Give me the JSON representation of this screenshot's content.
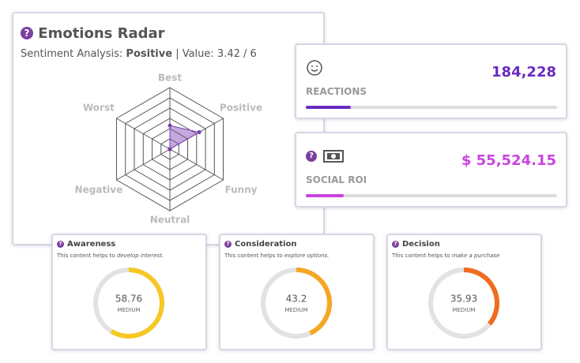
{
  "radar": {
    "title": "Emotions Radar",
    "subtitle_label": "Sentiment Analysis:",
    "sentiment": "Positive",
    "value_text": "| Value: 3.42 / 6",
    "axes": [
      "Best",
      "Positive",
      "Funny",
      "Neutral",
      "Negative",
      "Worst"
    ],
    "values": [
      2.3,
      3.3,
      0,
      0,
      0,
      0
    ],
    "scale_max": 6,
    "color": "#7a3fb0"
  },
  "stats": [
    {
      "label": "REACTIONS",
      "value": "184,228",
      "progress": 0.18,
      "color": "#6a2bc4"
    },
    {
      "label": "SOCIAL ROI",
      "value": "$ 55,524.15",
      "progress": 0.15,
      "color": "#c944e0"
    }
  ],
  "gauges": {
    "scale": [
      0,
      100
    ],
    "items": [
      {
        "title": "Awareness",
        "description": "This content helps to",
        "emphasis": "develop interest.",
        "value": 58.76,
        "level": "MEDIUM",
        "color": "#f7c825"
      },
      {
        "title": "Consideration",
        "description": "This content helps to",
        "emphasis": "explore options.",
        "value": 43.2,
        "level": "MEDIUM",
        "color": "#f5a623"
      },
      {
        "title": "Decision",
        "description": "This content helps to",
        "emphasis": "make a purchase",
        "value": 35.93,
        "level": "MEDIUM",
        "color": "#ef6c1f"
      }
    ]
  }
}
